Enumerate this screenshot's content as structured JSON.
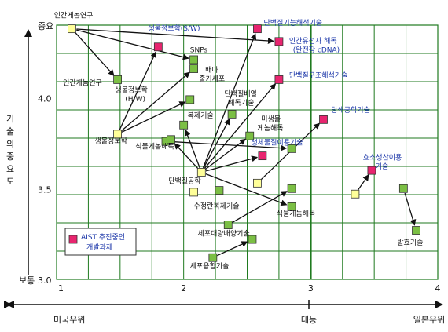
{
  "chart_data": {
    "type": "scatter",
    "xlim": [
      1,
      4
    ],
    "ylim": [
      3.0,
      4.4
    ],
    "grid": true,
    "y_axis": {
      "ticks": [
        {
          "value": 4.4,
          "label": "중요"
        },
        {
          "value": 4.0,
          "label": "4.0"
        },
        {
          "value": 3.5,
          "label": "3.5"
        },
        {
          "value": 3.0,
          "label": "3.0"
        }
      ],
      "bottom_word": "보통",
      "title": "기술의중요도"
    },
    "x_axis": {
      "tick_labels": [
        {
          "value": 1,
          "label": "1"
        },
        {
          "value": 2,
          "label": "2"
        },
        {
          "value": 3,
          "label": "3"
        },
        {
          "value": 4,
          "label": "4"
        }
      ],
      "bottom_labels": {
        "left": "미국우위",
        "middle": "대등",
        "right": "일본우위"
      }
    },
    "reference_line_x": 3,
    "colors": {
      "grid": "#1f7a1f",
      "green": "#7bbf44",
      "yellow": "#ffff99",
      "pink": "#e8256f",
      "label_blue": "#1a35a8",
      "arrow": "#111111"
    },
    "legend": {
      "label_line1": "AIST 추진중인",
      "label_line2": "개발과제",
      "position": "bottom-left"
    },
    "points": [
      {
        "id": "p1",
        "x": 1.12,
        "y": 4.38,
        "kind": "yellow"
      },
      {
        "id": "p2",
        "x": 1.48,
        "y": 4.1,
        "kind": "green"
      },
      {
        "id": "p3",
        "x": 1.48,
        "y": 3.8,
        "kind": "yellow"
      },
      {
        "id": "p4",
        "x": 1.8,
        "y": 4.28,
        "kind": "pink"
      },
      {
        "id": "p5",
        "x": 2.08,
        "y": 4.21,
        "kind": "green"
      },
      {
        "id": "p6",
        "x": 2.08,
        "y": 4.16,
        "kind": "green"
      },
      {
        "id": "p7",
        "x": 2.05,
        "y": 3.99,
        "kind": "green"
      },
      {
        "id": "p8",
        "x": 2.0,
        "y": 3.85,
        "kind": "green"
      },
      {
        "id": "p9",
        "x": 1.86,
        "y": 3.76,
        "kind": "green"
      },
      {
        "id": "p10",
        "x": 1.9,
        "y": 3.77,
        "kind": "green"
      },
      {
        "id": "p11",
        "x": 2.14,
        "y": 3.59,
        "kind": "yellow"
      },
      {
        "id": "p12",
        "x": 2.08,
        "y": 3.48,
        "kind": "yellow"
      },
      {
        "id": "p13",
        "x": 2.28,
        "y": 3.49,
        "kind": "green"
      },
      {
        "id": "p14",
        "x": 2.38,
        "y": 3.91,
        "kind": "green"
      },
      {
        "id": "p15",
        "x": 2.52,
        "y": 3.79,
        "kind": "green"
      },
      {
        "id": "p16",
        "x": 2.62,
        "y": 3.68,
        "kind": "pink"
      },
      {
        "id": "p17",
        "x": 2.85,
        "y": 3.72,
        "kind": "green"
      },
      {
        "id": "p18",
        "x": 2.58,
        "y": 4.38,
        "kind": "pink"
      },
      {
        "id": "p19",
        "x": 2.75,
        "y": 4.31,
        "kind": "pink"
      },
      {
        "id": "p20",
        "x": 2.75,
        "y": 4.1,
        "kind": "pink"
      },
      {
        "id": "p21",
        "x": 2.58,
        "y": 3.53,
        "kind": "yellow"
      },
      {
        "id": "p22",
        "x": 2.85,
        "y": 3.5,
        "kind": "green"
      },
      {
        "id": "p23",
        "x": 2.85,
        "y": 3.4,
        "kind": "green"
      },
      {
        "id": "p24",
        "x": 2.35,
        "y": 3.3,
        "kind": "green"
      },
      {
        "id": "p25",
        "x": 2.54,
        "y": 3.22,
        "kind": "green"
      },
      {
        "id": "p26",
        "x": 2.23,
        "y": 3.12,
        "kind": "green"
      },
      {
        "id": "p27",
        "x": 3.1,
        "y": 3.88,
        "kind": "pink"
      },
      {
        "id": "p28",
        "x": 3.35,
        "y": 3.47,
        "kind": "yellow"
      },
      {
        "id": "p29",
        "x": 3.48,
        "y": 3.6,
        "kind": "pink"
      },
      {
        "id": "p30",
        "x": 3.73,
        "y": 3.5,
        "kind": "green"
      },
      {
        "id": "p31",
        "x": 3.83,
        "y": 3.27,
        "kind": "green"
      }
    ],
    "arrows": [
      {
        "from": "p1",
        "to": "p2"
      },
      {
        "from": "p1",
        "to": "p5"
      },
      {
        "from": "p1",
        "to": "p19"
      },
      {
        "from": "p3",
        "to": "p4"
      },
      {
        "from": "p3",
        "to": "p7"
      },
      {
        "from": "p3",
        "to": "p6"
      },
      {
        "from": "p9",
        "to": "p17"
      },
      {
        "from": "p11",
        "to": "p18"
      },
      {
        "from": "p11",
        "to": "p20"
      },
      {
        "from": "p11",
        "to": "p14"
      },
      {
        "from": "p11",
        "to": "p8"
      },
      {
        "from": "p11",
        "to": "p10"
      },
      {
        "from": "p11",
        "to": "p15"
      },
      {
        "from": "p11",
        "to": "p16"
      },
      {
        "from": "p11",
        "to": "p23"
      },
      {
        "from": "p21",
        "to": "p27"
      },
      {
        "from": "p24",
        "to": "p22"
      },
      {
        "from": "p26",
        "to": "p25"
      },
      {
        "from": "p28",
        "to": "p29"
      },
      {
        "from": "p30",
        "to": "p31"
      }
    ],
    "labels": [
      {
        "text": "인간게놈연구",
        "x": 0.98,
        "y": 4.44,
        "color": "black",
        "anchor": "start"
      },
      {
        "text": "생물정보학(S/W)",
        "x": 1.72,
        "y": 4.37,
        "color": "blue",
        "anchor": "start"
      },
      {
        "text": "단백질기능해석기술",
        "x": 2.63,
        "y": 4.4,
        "color": "blue",
        "anchor": "start"
      },
      {
        "text": "인간유전자 해독",
        "x": 2.83,
        "y": 4.3,
        "color": "blue",
        "anchor": "start"
      },
      {
        "text": "(완전장 cDNA)",
        "x": 2.86,
        "y": 4.25,
        "color": "blue",
        "anchor": "start"
      },
      {
        "text": "SNPs",
        "x": 2.05,
        "y": 4.25,
        "color": "black",
        "anchor": "start"
      },
      {
        "text": "배아",
        "x": 2.17,
        "y": 4.14,
        "color": "black",
        "anchor": "start"
      },
      {
        "text": "줄기세포",
        "x": 2.12,
        "y": 4.09,
        "color": "black",
        "anchor": "start"
      },
      {
        "text": "인간게놈연구",
        "x": 1.05,
        "y": 4.07,
        "color": "black",
        "anchor": "start"
      },
      {
        "text": "단백질구조해석기술",
        "x": 2.83,
        "y": 4.11,
        "color": "blue",
        "anchor": "start"
      },
      {
        "text": "생물정보학",
        "x": 1.46,
        "y": 4.03,
        "color": "black",
        "anchor": "start"
      },
      {
        "text": "(H/W)",
        "x": 1.54,
        "y": 3.98,
        "color": "black",
        "anchor": "start"
      },
      {
        "text": "단백질배열",
        "x": 2.32,
        "y": 4.01,
        "color": "black",
        "anchor": "start"
      },
      {
        "text": "해독기술",
        "x": 2.35,
        "y": 3.96,
        "color": "black",
        "anchor": "start"
      },
      {
        "text": "당쇄공학기술",
        "x": 3.16,
        "y": 3.92,
        "color": "blue",
        "anchor": "start"
      },
      {
        "text": "복제기술",
        "x": 2.03,
        "y": 3.89,
        "color": "black",
        "anchor": "start"
      },
      {
        "text": "미생물",
        "x": 2.61,
        "y": 3.87,
        "color": "black",
        "anchor": "start"
      },
      {
        "text": "게놈해독",
        "x": 2.58,
        "y": 3.82,
        "color": "black",
        "anchor": "start"
      },
      {
        "text": "생물정보학",
        "x": 1.3,
        "y": 3.75,
        "color": "black",
        "anchor": "start"
      },
      {
        "text": "생체물질이용기술",
        "x": 2.53,
        "y": 3.74,
        "color": "blue",
        "anchor": "start"
      },
      {
        "text": "식물게놈해독",
        "x": 1.62,
        "y": 3.72,
        "color": "black",
        "anchor": "start"
      },
      {
        "text": "효소생산이용",
        "x": 3.41,
        "y": 3.66,
        "color": "blue",
        "anchor": "start"
      },
      {
        "text": "기술",
        "x": 3.51,
        "y": 3.61,
        "color": "blue",
        "anchor": "start"
      },
      {
        "text": "단백질공학",
        "x": 1.88,
        "y": 3.53,
        "color": "black",
        "anchor": "start"
      },
      {
        "text": "수정란복제기술",
        "x": 2.08,
        "y": 3.39,
        "color": "black",
        "anchor": "start"
      },
      {
        "text": "식물게놈해독",
        "x": 2.73,
        "y": 3.35,
        "color": "black",
        "anchor": "start"
      },
      {
        "text": "세포대량배양기술",
        "x": 2.11,
        "y": 3.24,
        "color": "black",
        "anchor": "start"
      },
      {
        "text": "발효기술",
        "x": 3.68,
        "y": 3.19,
        "color": "black",
        "anchor": "start"
      },
      {
        "text": "세포융합기술",
        "x": 2.05,
        "y": 3.06,
        "color": "black",
        "anchor": "start"
      }
    ]
  }
}
